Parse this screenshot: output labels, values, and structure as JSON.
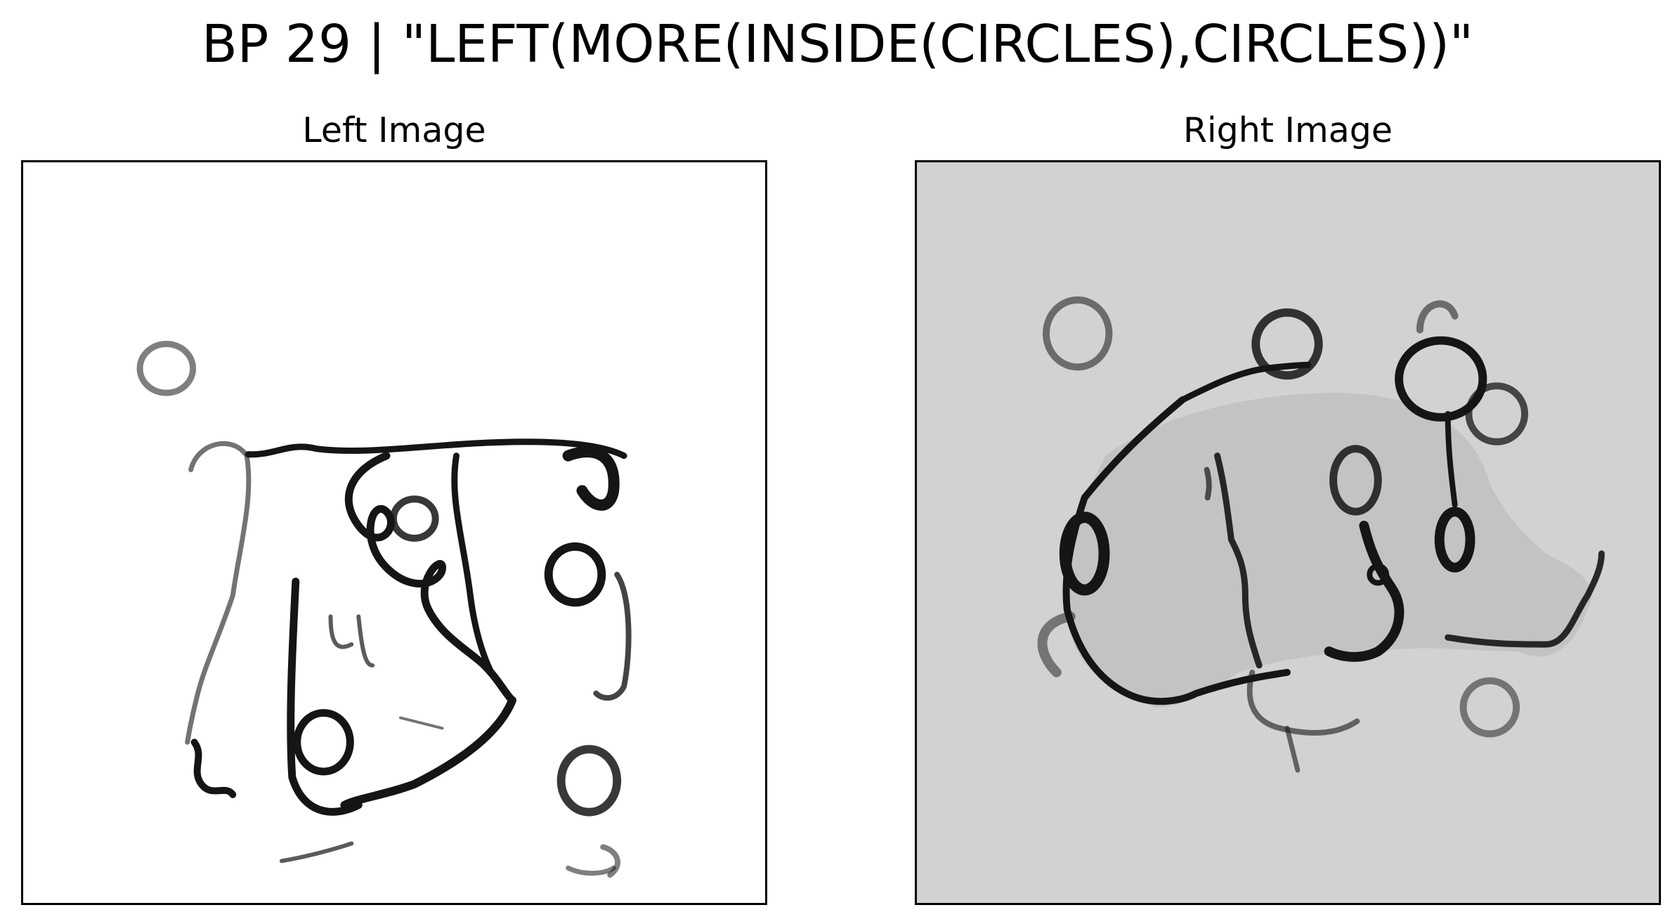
{
  "figure": {
    "title": "BP 29 | \"LEFT(MORE(INSIDE(CIRCLES),CIRCLES))\""
  },
  "panels": {
    "left": {
      "title": "Left Image",
      "background": "#ffffff",
      "ink": "#111111"
    },
    "right": {
      "title": "Right Image",
      "background": "#d2d2d2",
      "ink": "#111111"
    }
  }
}
